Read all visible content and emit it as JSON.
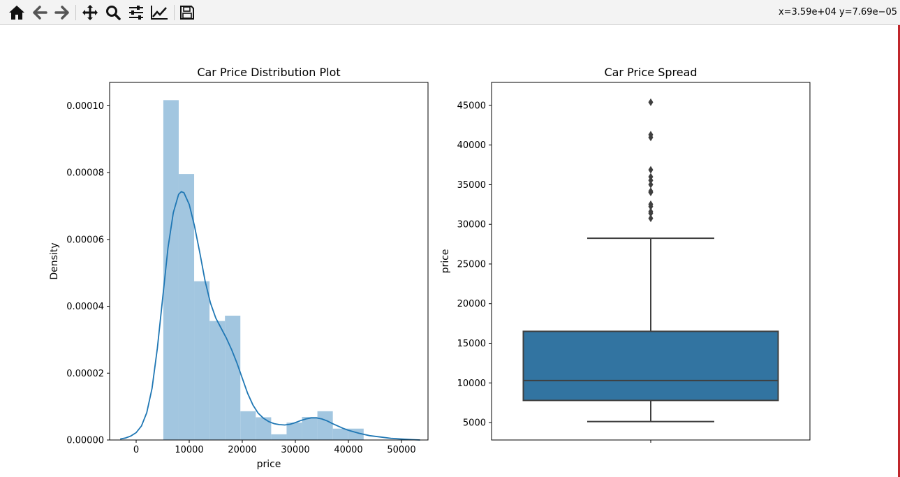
{
  "toolbar": {
    "buttons": [
      {
        "icon": "home-icon"
      },
      {
        "icon": "back-arrow-icon"
      },
      {
        "icon": "forward-arrow-icon"
      },
      {
        "icon": "pan-move-icon"
      },
      {
        "icon": "zoom-magnifier-icon"
      },
      {
        "icon": "configure-subplots-icon"
      },
      {
        "icon": "edit-axis-line-icon"
      },
      {
        "icon": "save-disk-icon"
      }
    ],
    "coordinates": "x=3.59e+04 y=7.69e−05"
  },
  "colors": {
    "hist_fill": "#a2c6e0",
    "kde_line": "#1f77b4",
    "box_fill": "#3274a1",
    "box_line": "#3f3f3f",
    "window_accent": "#c0262b"
  },
  "chart_data": [
    {
      "type": "histogram",
      "title": "Car Price Distribution Plot",
      "xlabel": "price",
      "ylabel": "Density",
      "xlim": [
        -5000,
        55000
      ],
      "ylim": [
        0,
        0.000107
      ],
      "xticks": [
        0,
        10000,
        20000,
        30000,
        40000,
        50000
      ],
      "xtick_labels": [
        "0",
        "10000",
        "20000",
        "30000",
        "40000",
        "50000"
      ],
      "yticks": [
        0,
        2e-05,
        4e-05,
        6e-05,
        8e-05,
        0.0001
      ],
      "ytick_labels": [
        "0.00000",
        "0.00002",
        "0.00004",
        "0.00006",
        "0.00008",
        "0.00010"
      ],
      "bin_edges": [
        5118,
        8022,
        10926,
        13830,
        16734,
        19638,
        22542,
        25446,
        28350,
        31254,
        34158,
        37062,
        39966,
        42870,
        45774
      ],
      "density": [
        0.0001017,
        7.96e-05,
        4.75e-05,
        3.56e-05,
        3.72e-05,
        8.6e-06,
        6.8e-06,
        1.7e-06,
        5.2e-06,
        6.9e-06,
        8.6e-06,
        3.4e-06,
        3.4e-06,
        0.0
      ],
      "kde": {
        "x": [
          -3000,
          -2000,
          -1000,
          0,
          1000,
          2000,
          3000,
          4000,
          5000,
          6000,
          7000,
          8000,
          8500,
          9000,
          10000,
          11000,
          12000,
          13000,
          14000,
          15000,
          16000,
          17000,
          18000,
          19000,
          20000,
          21000,
          22000,
          23000,
          24000,
          25000,
          26000,
          27000,
          28000,
          29000,
          30000,
          31000,
          32000,
          33000,
          34000,
          35000,
          36000,
          37000,
          38000,
          39000,
          40000,
          42000,
          44000,
          46000,
          48000,
          50000,
          52000,
          53500
        ],
        "y": [
          3e-07,
          6e-07,
          1.2e-06,
          2.2e-06,
          4.2e-06,
          8.2e-06,
          1.55e-05,
          2.75e-05,
          4.25e-05,
          5.75e-05,
          6.8e-05,
          7.35e-05,
          7.43e-05,
          7.4e-05,
          7.05e-05,
          6.4e-05,
          5.6e-05,
          4.75e-05,
          4.1e-05,
          3.65e-05,
          3.35e-05,
          3.05e-05,
          2.7e-05,
          2.3e-05,
          1.85e-05,
          1.4e-05,
          1.05e-05,
          8e-06,
          6.5e-06,
          5.5e-06,
          4.9e-06,
          4.6e-06,
          4.5e-06,
          4.7e-06,
          5.2e-06,
          5.8e-06,
          6.3e-06,
          6.6e-06,
          6.6e-06,
          6.3e-06,
          5.7e-06,
          4.9e-06,
          4.2e-06,
          3.5e-06,
          2.9e-06,
          2e-06,
          1.3e-06,
          9e-07,
          5e-07,
          3e-07,
          1e-07,
          0.0
        ]
      }
    },
    {
      "type": "box",
      "title": "Car Price Spread",
      "xlabel": "",
      "ylabel": "price",
      "ylim": [
        2800,
        47900
      ],
      "yticks": [
        5000,
        10000,
        15000,
        20000,
        25000,
        30000,
        35000,
        40000,
        45000
      ],
      "ytick_labels": [
        "5000",
        "10000",
        "15000",
        "20000",
        "25000",
        "30000",
        "35000",
        "40000",
        "45000"
      ],
      "box": {
        "whisker_low": 5118,
        "q1": 7788,
        "median": 10295,
        "q3": 16503,
        "whisker_high": 28248
      },
      "outliers": [
        30760,
        31400,
        31600,
        32250,
        32530,
        34030,
        34180,
        35020,
        35550,
        36000,
        36880,
        40960,
        41310,
        45400
      ]
    }
  ]
}
